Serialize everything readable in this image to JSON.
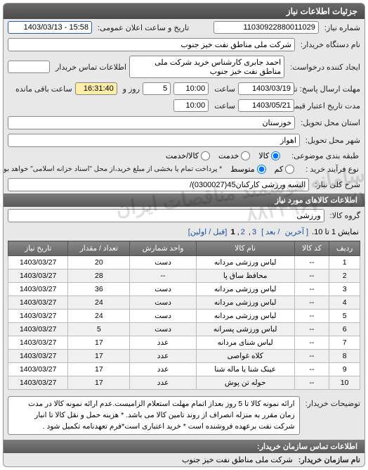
{
  "panel": {
    "title": "جزئیات اطلاعات نیاز"
  },
  "info": {
    "request_no_label": "شماره نیاز:",
    "request_no": "11030922880011029",
    "public_date_label": "تاریخ و ساعت اعلان عمومی:",
    "public_date": "15:58 - 1403/03/13",
    "buyer_org_label": "نام دستگاه خریدار:",
    "buyer_org": "شرکت ملی مناطق نفت خیز جنوب",
    "requester_label": "ایجاد کننده درخواست:",
    "requester": "احمد جابری کارشناس خرید شرکت ملی مناطق نفت خیز جنوب",
    "buyer_contact_label": "اطلاعات تماس خریدار",
    "deadline_send_label": "مهلت ارسال پاسخ: تا تاریخ:",
    "deadline_date": "1403/03/19",
    "time_label": "ساعت",
    "deadline_time": "10:00",
    "days_label": "روز و",
    "days_val": "5",
    "remain_label": "ساعت باقی مانده",
    "remain_val": "16:31:40",
    "validity_label": "مدت تاریخ اعتبار قیمت: تا تاریخ:",
    "validity_date": "1403/05/21",
    "validity_time": "10:00",
    "delivery_province_label": "استان محل تحویل:",
    "delivery_province": "خوزستان",
    "delivery_city_label": "شهر محل تحویل:",
    "delivery_city": "اهواز",
    "packaging_label": "طبقه بندی موضوعی:",
    "pkg_goods": "کالا",
    "pkg_service": "خدمت",
    "pkg_both": "کالا/خدمت",
    "process_label": "نوع فرآیند خرید :",
    "proc_low": "کم",
    "proc_mid": "متوسط",
    "proc_note": "* پرداخت تمام یا بخشی از مبلغ خرید،از محل \"اسناد خزانه اسلامی\" خواهد بود.",
    "desc_label": "شرح کلی نیاز:",
    "desc_val": "البسه ورزشی کارکنان45(0300027)/"
  },
  "items_section": {
    "header": "اطلاعات کالاهای مورد نیاز",
    "group_label": "گروه کالا:",
    "group_val": "ورزشی",
    "pager_text": "نمایش 1 تا 10.",
    "pager_links": {
      "last": "[ آخرین",
      "next": "/ بعد ]",
      "p3": "3",
      "p2": "2",
      "p1": "1",
      "first": "[قبل / اولین]"
    },
    "columns": [
      "ردیف",
      "کد کالا",
      "نام کالا",
      "واحد شمارش",
      "تعداد / مقدار",
      "تاریخ نیاز"
    ],
    "rows": [
      [
        "1",
        "--",
        "لباس ورزشی مردانه",
        "دست",
        "20",
        "1403/03/27"
      ],
      [
        "2",
        "--",
        "محافظ ساق پا",
        "--",
        "28",
        "1403/03/27"
      ],
      [
        "3",
        "--",
        "لباس ورزشی مردانه",
        "دست",
        "36",
        "1403/03/27"
      ],
      [
        "4",
        "--",
        "لباس ورزشی مردانه",
        "دست",
        "24",
        "1403/03/27"
      ],
      [
        "5",
        "--",
        "لباس ورزشی مردانه",
        "دست",
        "24",
        "1403/03/27"
      ],
      [
        "6",
        "--",
        "لباس ورزشی پسرانه",
        "دست",
        "5",
        "1403/03/27"
      ],
      [
        "7",
        "--",
        "لباس شنای مردانه",
        "عدد",
        "17",
        "1403/03/27"
      ],
      [
        "8",
        "--",
        "کلاه غواصی",
        "عدد",
        "17",
        "1403/03/27"
      ],
      [
        "9",
        "--",
        "عینک شنا یا ماله شنا",
        "عدد",
        "17",
        "1403/03/27"
      ],
      [
        "10",
        "--",
        "حوله تن پوش",
        "عدد",
        "17",
        "1403/03/27"
      ]
    ],
    "buyer_notes_label": "توضیحات خریدار:",
    "buyer_notes": "ارائه نمونه کالا تا 5 روز بعداز اتمام مهلت استعلام الزامیست.عدم ارائه نمونه کالا در مدت زمان مقرر به منزله انصراف از روند تامین کالا می باشد. * هزینه حمل و نقل کالا تا انبار شرکت نفت برعهده فروشنده است * خرید اعتباری است*فرم تعهدنامه تکمیل شود ."
  },
  "contact": {
    "header": "اطلاعات تماس سازمان خریدار:",
    "org_label": "نام سازمان خریدار:",
    "org_val": "شرکت ملی مناطق نفت خیز جنوب"
  },
  "watermark": "سامانه هوشمند مناقصات ایران ۰۲۱-۸۸۳۴۹۶۷۰"
}
